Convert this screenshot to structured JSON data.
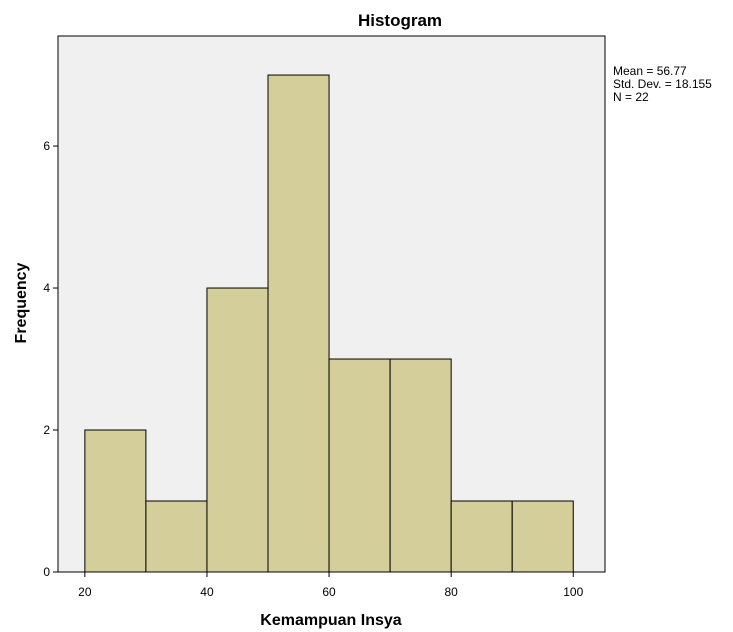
{
  "chart_data": {
    "type": "bar",
    "title": "Histogram",
    "xlabel": "Kemampuan Insya",
    "ylabel": "Frequency",
    "bins": [
      {
        "start": 20,
        "end": 30,
        "count": 2
      },
      {
        "start": 30,
        "end": 40,
        "count": 1
      },
      {
        "start": 40,
        "end": 50,
        "count": 4
      },
      {
        "start": 50,
        "end": 60,
        "count": 7
      },
      {
        "start": 60,
        "end": 70,
        "count": 3
      },
      {
        "start": 70,
        "end": 80,
        "count": 3
      },
      {
        "start": 80,
        "end": 90,
        "count": 1
      },
      {
        "start": 90,
        "end": 100,
        "count": 1
      }
    ],
    "xlim": [
      15.6,
      105.2
    ],
    "ylim": [
      0,
      7.55
    ],
    "x_ticks": [
      20,
      40,
      60,
      80,
      100
    ],
    "y_ticks": [
      0,
      2,
      4,
      6
    ],
    "grid": false,
    "legend": "none",
    "stats": [
      "Mean = 56.77",
      "Std. Dev. = 18.155",
      "N = 22"
    ],
    "colors": {
      "bar_fill": "#d3ce9a",
      "bar_stroke": "#000000",
      "plot_background": "#f0f0f0",
      "page_background": "#ffffff"
    }
  }
}
